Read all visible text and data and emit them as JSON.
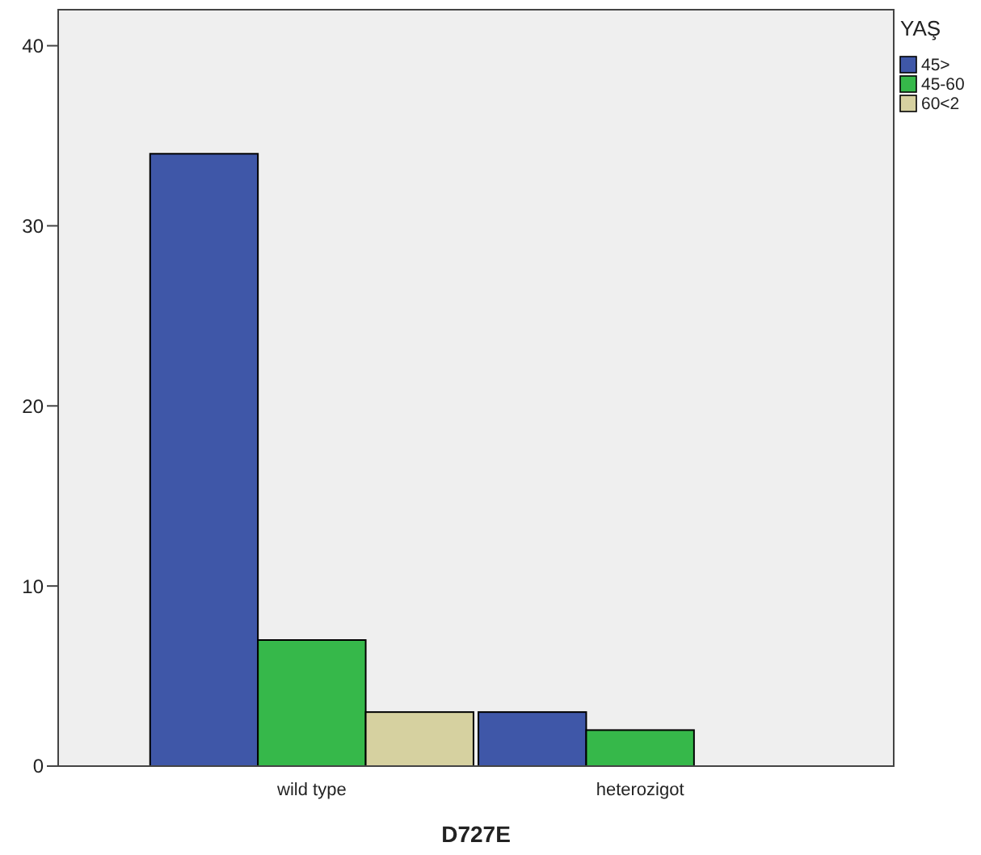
{
  "chart_data": {
    "type": "bar",
    "xlabel": "D727E",
    "legend_title": "YAŞ",
    "categories": [
      "wild type",
      "heterozigot"
    ],
    "series": [
      {
        "name": "45>",
        "color": "#3f57a8",
        "values": [
          34,
          3
        ]
      },
      {
        "name": "45-60",
        "color": "#36b84a",
        "values": [
          7,
          2
        ]
      },
      {
        "name": "60<2",
        "color": "#d6d1a0",
        "values": [
          3,
          null
        ]
      }
    ],
    "ylim": [
      0,
      42
    ],
    "yticks": [
      0,
      10,
      20,
      30,
      40
    ],
    "grid": false,
    "legend": "right"
  }
}
